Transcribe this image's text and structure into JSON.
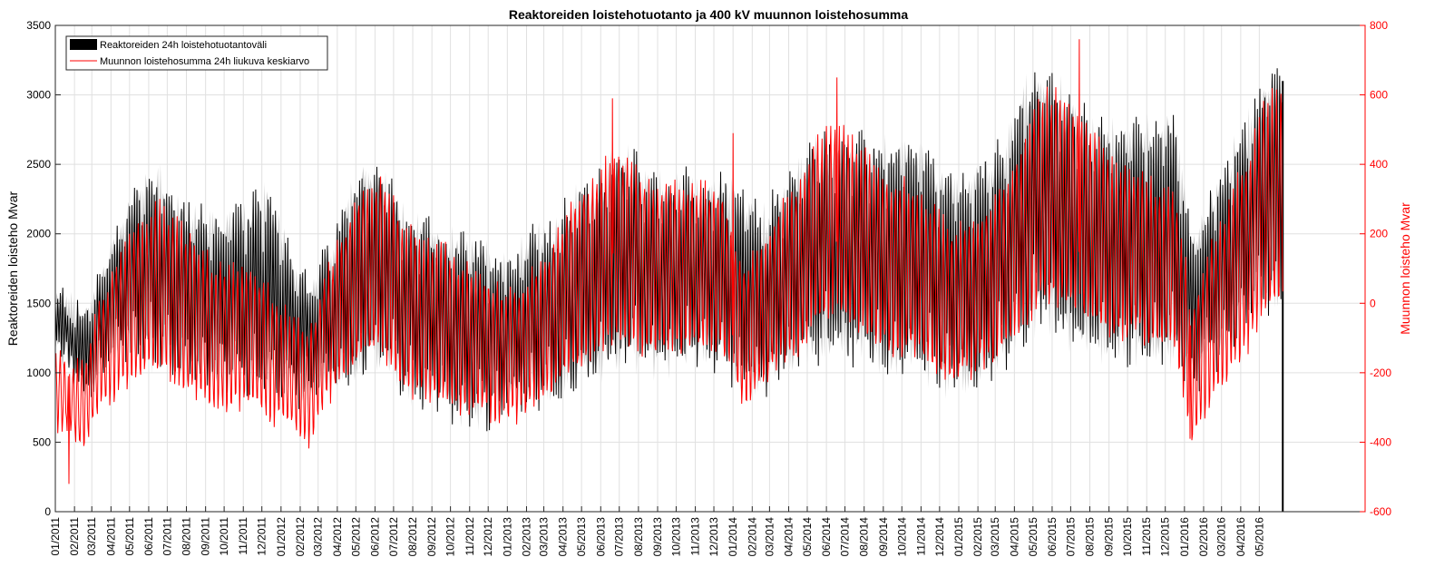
{
  "chart_data": {
    "type": "line",
    "title": "Reaktoreiden loistehotuotanto ja 400 kV muunnon loistehosumma",
    "ylabel_left": "Reaktoreiden loisteho Mvar",
    "ylabel_right": "Muunnon loisteho Mvar",
    "ylim_left": [
      0,
      3500
    ],
    "ylim_right": [
      -600,
      800
    ],
    "yticks_left": [
      "0",
      "500",
      "1000",
      "1500",
      "2000",
      "2500",
      "3000",
      "3500"
    ],
    "yticks_right": [
      "-600",
      "-400",
      "-200",
      "0",
      "200",
      "400",
      "600",
      "800"
    ],
    "x_tick_labels": [
      "01/2011",
      "02/2011",
      "03/2011",
      "04/2011",
      "05/2011",
      "06/2011",
      "07/2011",
      "08/2011",
      "09/2011",
      "10/2011",
      "11/2011",
      "12/2011",
      "01/2012",
      "02/2012",
      "03/2012",
      "04/2012",
      "05/2012",
      "06/2012",
      "07/2012",
      "08/2012",
      "09/2012",
      "10/2012",
      "11/2012",
      "12/2012",
      "01/2013",
      "02/2013",
      "03/2013",
      "04/2013",
      "05/2013",
      "06/2013",
      "07/2013",
      "08/2013",
      "09/2013",
      "10/2013",
      "11/2013",
      "12/2013",
      "01/2014",
      "02/2014",
      "03/2014",
      "04/2014",
      "05/2014",
      "06/2014",
      "07/2014",
      "08/2014",
      "09/2014",
      "10/2014",
      "11/2014",
      "12/2014",
      "01/2015",
      "02/2015",
      "03/2015",
      "04/2015",
      "05/2015",
      "06/2015",
      "07/2015",
      "08/2015",
      "09/2015",
      "10/2015",
      "11/2015",
      "12/2015",
      "01/2016",
      "02/2016",
      "03/2016",
      "04/2016",
      "05/2016"
    ],
    "grid": true,
    "legend_position": "top-left",
    "series": [
      {
        "name": "Reaktoreiden 24h loistehotuotantoväli",
        "kind": "band",
        "axis": "left",
        "color": "#000000",
        "fill": "#cccccc",
        "x": [
          "2011-01",
          "2011-02",
          "2011-03",
          "2011-04",
          "2011-05",
          "2011-06",
          "2011-07",
          "2011-08",
          "2011-09",
          "2011-10",
          "2011-11",
          "2011-12",
          "2012-01",
          "2012-02",
          "2012-03",
          "2012-04",
          "2012-05",
          "2012-06",
          "2012-07",
          "2012-08",
          "2012-09",
          "2012-10",
          "2012-11",
          "2012-12",
          "2013-01",
          "2013-02",
          "2013-03",
          "2013-04",
          "2013-05",
          "2013-06",
          "2013-07",
          "2013-08",
          "2013-09",
          "2013-10",
          "2013-11",
          "2013-12",
          "2014-01",
          "2014-02",
          "2014-03",
          "2014-04",
          "2014-05",
          "2014-06",
          "2014-07",
          "2014-08",
          "2014-09",
          "2014-10",
          "2014-11",
          "2014-12",
          "2015-01",
          "2015-02",
          "2015-03",
          "2015-04",
          "2015-05",
          "2015-06",
          "2015-07",
          "2015-08",
          "2015-09",
          "2015-10",
          "2015-11",
          "2015-12",
          "2016-01",
          "2016-02",
          "2016-03",
          "2016-04",
          "2016-05",
          "2016-06"
        ],
        "upper": [
          1550,
          1400,
          1700,
          2100,
          2350,
          2450,
          2250,
          2150,
          2100,
          2150,
          2200,
          2300,
          1900,
          1600,
          1850,
          2200,
          2500,
          2450,
          2150,
          2050,
          2000,
          1950,
          1900,
          1850,
          1850,
          2050,
          2000,
          2250,
          2350,
          2500,
          2550,
          2450,
          2350,
          2400,
          2350,
          2350,
          2300,
          2100,
          2300,
          2450,
          2650,
          2700,
          2650,
          2650,
          2600,
          2650,
          2550,
          2400,
          2400,
          2500,
          2650,
          3050,
          3150,
          3050,
          2900,
          2750,
          2750,
          2800,
          2800,
          2850,
          1950,
          2300,
          2550,
          2850,
          3150,
          3150
        ],
        "lower": [
          1100,
          900,
          1000,
          1100,
          1150,
          1100,
          1000,
          950,
          950,
          950,
          900,
          900,
          900,
          800,
          900,
          950,
          1050,
          1100,
          900,
          800,
          800,
          700,
          700,
          700,
          800,
          850,
          850,
          900,
          1000,
          1050,
          1100,
          1050,
          1050,
          1100,
          1100,
          1100,
          900,
          900,
          1000,
          1100,
          1150,
          1200,
          1150,
          1100,
          1050,
          1050,
          1000,
          900,
          900,
          1000,
          1100,
          1300,
          1400,
          1300,
          1200,
          1150,
          1150,
          1150,
          1100,
          1100,
          900,
          1100,
          1200,
          1400,
          1500,
          1400
        ]
      },
      {
        "name": "Muunnon loistehosumma 24h liukuva keskiarvo",
        "kind": "line",
        "axis": "right",
        "color": "#ff0000",
        "x": [
          "2011-01",
          "2011-02",
          "2011-03",
          "2011-04",
          "2011-05",
          "2011-06",
          "2011-07",
          "2011-08",
          "2011-09",
          "2011-10",
          "2011-11",
          "2011-12",
          "2012-01",
          "2012-02",
          "2012-03",
          "2012-04",
          "2012-05",
          "2012-06",
          "2012-07",
          "2012-08",
          "2012-09",
          "2012-10",
          "2012-11",
          "2012-12",
          "2013-01",
          "2013-02",
          "2013-03",
          "2013-04",
          "2013-05",
          "2013-06",
          "2013-07",
          "2013-08",
          "2013-09",
          "2013-10",
          "2013-11",
          "2013-12",
          "2014-01",
          "2014-02",
          "2014-03",
          "2014-04",
          "2014-05",
          "2014-06",
          "2014-07",
          "2014-08",
          "2014-09",
          "2014-10",
          "2014-11",
          "2014-12",
          "2015-01",
          "2015-02",
          "2015-03",
          "2015-04",
          "2015-05",
          "2015-06",
          "2015-07",
          "2015-08",
          "2015-09",
          "2015-10",
          "2015-11",
          "2015-12",
          "2016-01",
          "2016-02",
          "2016-03",
          "2016-04",
          "2016-05",
          "2016-06"
        ],
        "mid": [
          -250,
          -300,
          -150,
          -50,
          0,
          50,
          0,
          -50,
          -100,
          -100,
          -100,
          -150,
          -200,
          -250,
          -100,
          0,
          100,
          100,
          0,
          -50,
          -50,
          -100,
          -100,
          -150,
          -150,
          -100,
          -50,
          50,
          100,
          150,
          150,
          100,
          100,
          100,
          100,
          100,
          -100,
          -50,
          50,
          100,
          200,
          250,
          200,
          150,
          100,
          100,
          50,
          0,
          0,
          50,
          100,
          200,
          300,
          300,
          250,
          200,
          150,
          150,
          100,
          100,
          -200,
          -50,
          50,
          150,
          300,
          300
        ],
        "amp": [
          100,
          120,
          150,
          200,
          220,
          230,
          230,
          220,
          210,
          200,
          200,
          180,
          160,
          150,
          180,
          220,
          240,
          250,
          240,
          230,
          220,
          210,
          200,
          190,
          180,
          190,
          210,
          230,
          250,
          260,
          260,
          250,
          240,
          240,
          230,
          220,
          200,
          200,
          220,
          240,
          260,
          270,
          260,
          250,
          240,
          240,
          230,
          210,
          210,
          220,
          240,
          270,
          300,
          300,
          290,
          270,
          250,
          240,
          230,
          220,
          200,
          220,
          250,
          280,
          300,
          300
        ],
        "peaks": [
          {
            "x": "2011-01-23",
            "y": -520
          },
          {
            "x": "2013-06-20",
            "y": 590
          },
          {
            "x": "2014-01-01",
            "y": 490
          },
          {
            "x": "2014-06-18",
            "y": 650
          },
          {
            "x": "2015-07-15",
            "y": 760
          },
          {
            "x": "2016-01-10",
            "y": -390
          }
        ]
      }
    ]
  }
}
